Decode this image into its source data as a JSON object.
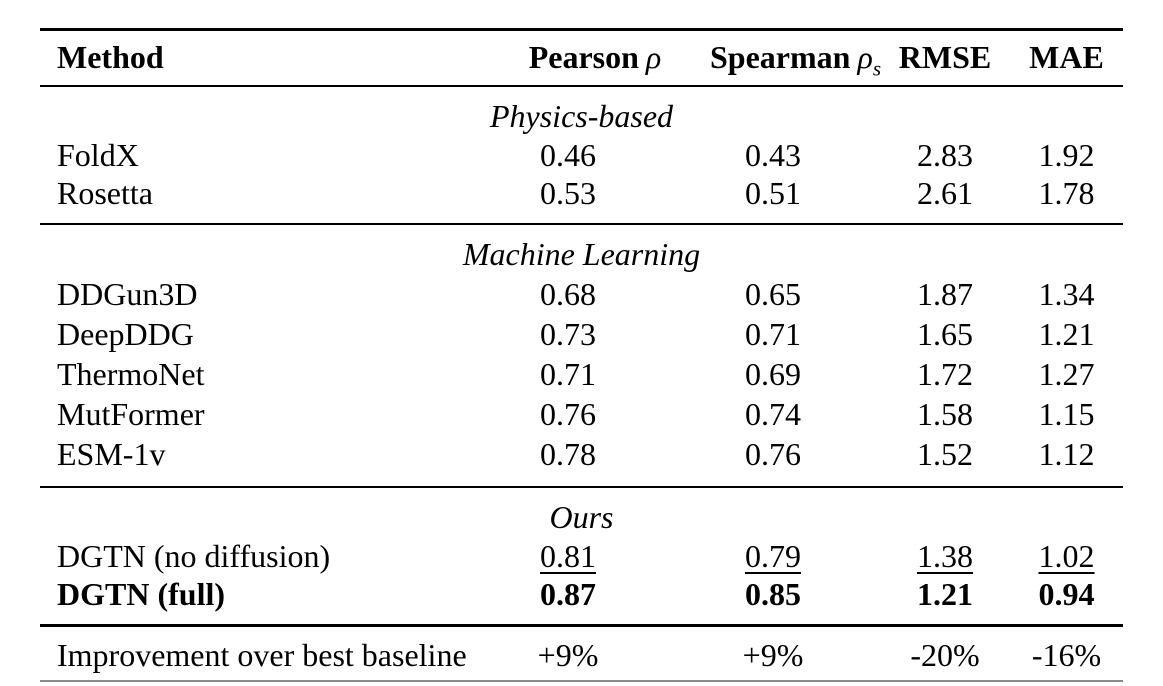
{
  "table": {
    "headers": {
      "method": "Method",
      "pearson": {
        "label": "Pearson",
        "symbol": "ρ"
      },
      "spearman": {
        "label": "Spearman",
        "symbol": "ρ",
        "subscript": "s"
      },
      "rmse": "RMSE",
      "mae": "MAE"
    },
    "sections": [
      {
        "title": "Physics-based",
        "rows": [
          {
            "method": "FoldX",
            "pearson": "0.46",
            "spearman": "0.43",
            "rmse": "2.83",
            "mae": "1.92"
          },
          {
            "method": "Rosetta",
            "pearson": "0.53",
            "spearman": "0.51",
            "rmse": "2.61",
            "mae": "1.78"
          }
        ]
      },
      {
        "title": "Machine Learning",
        "rows": [
          {
            "method": "DDGun3D",
            "pearson": "0.68",
            "spearman": "0.65",
            "rmse": "1.87",
            "mae": "1.34"
          },
          {
            "method": "DeepDDG",
            "pearson": "0.73",
            "spearman": "0.71",
            "rmse": "1.65",
            "mae": "1.21"
          },
          {
            "method": "ThermoNet",
            "pearson": "0.71",
            "spearman": "0.69",
            "rmse": "1.72",
            "mae": "1.27"
          },
          {
            "method": "MutFormer",
            "pearson": "0.76",
            "spearman": "0.74",
            "rmse": "1.58",
            "mae": "1.15"
          },
          {
            "method": "ESM-1v",
            "pearson": "0.78",
            "spearman": "0.76",
            "rmse": "1.52",
            "mae": "1.12"
          }
        ]
      },
      {
        "title": "Ours",
        "rows": [
          {
            "method": "DGTN (no diffusion)",
            "pearson": "0.81",
            "spearman": "0.79",
            "rmse": "1.38",
            "mae": "1.02",
            "emphasis": "underline"
          },
          {
            "method": "DGTN (full)",
            "pearson": "0.87",
            "spearman": "0.85",
            "rmse": "1.21",
            "mae": "0.94",
            "emphasis": "bold"
          }
        ]
      }
    ],
    "summary_row": {
      "label": "Improvement over best baseline",
      "pearson": "+9%",
      "spearman": "+9%",
      "rmse": "-20%",
      "mae": "-16%"
    }
  },
  "colors": {
    "background": "#ffffff",
    "text": "#000000",
    "rule": "#000000",
    "bottom_rule": "#8a8a8a"
  }
}
